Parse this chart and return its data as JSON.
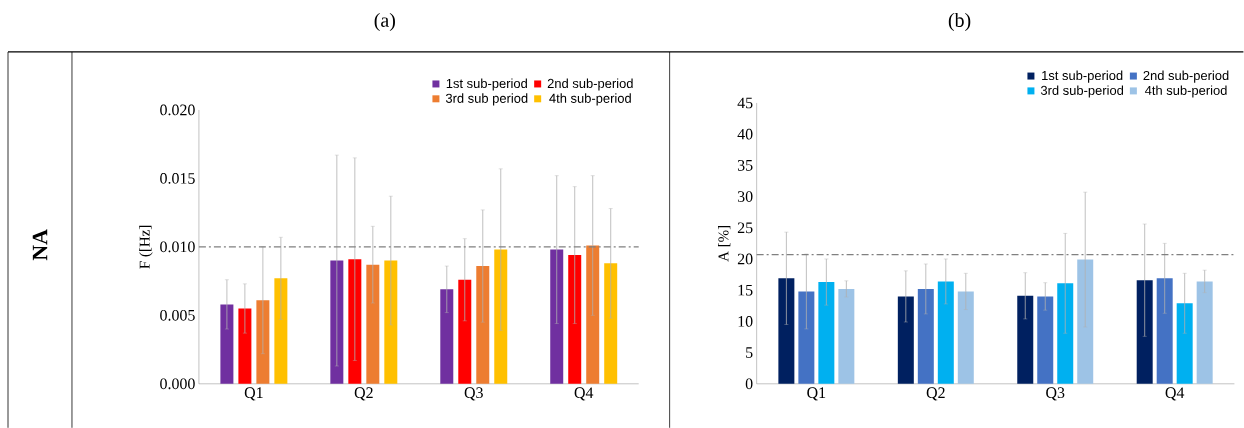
{
  "chart_data": [
    {
      "type": "bar",
      "title": "(a)",
      "ylabel": "F ([Hz]",
      "annotations": [
        "NA"
      ],
      "categories": [
        "Q1",
        "Q2",
        "Q3",
        "Q4"
      ],
      "series": [
        {
          "name": "1st sub-period",
          "color": "#7030a0",
          "values": [
            0.0058,
            0.009,
            0.0069,
            0.0098
          ],
          "errors": [
            0.0018,
            0.0077,
            0.0017,
            0.0054
          ]
        },
        {
          "name": "2nd sub-period",
          "color": "#ff0000",
          "values": [
            0.0055,
            0.0091,
            0.0076,
            0.0094
          ],
          "errors": [
            0.0018,
            0.0074,
            0.003,
            0.005
          ]
        },
        {
          "name": "3rd sub period",
          "color": "#ed7d31",
          "values": [
            0.0061,
            0.0087,
            0.0086,
            0.0101
          ],
          "errors": [
            0.0039,
            0.0028,
            0.0041,
            0.0051
          ]
        },
        {
          "name": "4th sub-period",
          "color": "#ffc000",
          "values": [
            0.0077,
            0.009,
            0.0098,
            0.0088
          ],
          "errors": [
            0.003,
            0.0047,
            0.0059,
            0.004
          ]
        }
      ],
      "ylim": [
        0,
        0.02
      ],
      "yticks": [
        {
          "value": 0,
          "label": "0.000"
        },
        {
          "value": 0.005,
          "label": "0.005"
        },
        {
          "value": 0.01,
          "label": "0.010"
        },
        {
          "value": 0.015,
          "label": "0.015"
        },
        {
          "value": 0.02,
          "label": "0.020"
        }
      ],
      "ref_lines": [
        {
          "axis": "y",
          "value": 0.01,
          "color": "#808080",
          "line_style": "dashdot"
        }
      ],
      "legend": "top right"
    },
    {
      "type": "bar",
      "title": "(b)",
      "ylabel": "A [%]",
      "categories": [
        "Q1",
        "Q2",
        "Q3",
        "Q4"
      ],
      "series": [
        {
          "name": "1st sub-period",
          "color": "#002060",
          "values": [
            16.9,
            14.0,
            14.1,
            16.6
          ],
          "errors": [
            7.4,
            4.1,
            3.7,
            9.0
          ]
        },
        {
          "name": "2nd sub-period",
          "color": "#4472c4",
          "values": [
            14.8,
            15.2,
            14.0,
            16.9
          ],
          "errors": [
            6.0,
            4.0,
            2.2,
            5.6
          ]
        },
        {
          "name": "3rd sub-period",
          "color": "#00b0f0",
          "values": [
            16.3,
            16.4,
            16.1,
            12.9
          ],
          "errors": [
            3.7,
            3.6,
            8.0,
            4.8
          ]
        },
        {
          "name": "4th sub-period",
          "color": "#9dc3e6",
          "values": [
            15.2,
            14.8,
            19.9,
            16.4
          ],
          "errors": [
            1.3,
            2.9,
            10.8,
            1.8
          ]
        }
      ],
      "ylim": [
        0,
        45
      ],
      "yticks": [
        0,
        5,
        10,
        15,
        20,
        25,
        30,
        35,
        40,
        45
      ],
      "ref_lines": [
        {
          "axis": "y",
          "value": 20.7,
          "color": "#808080",
          "line_style": "dashdot"
        }
      ],
      "legend": "top right"
    }
  ]
}
